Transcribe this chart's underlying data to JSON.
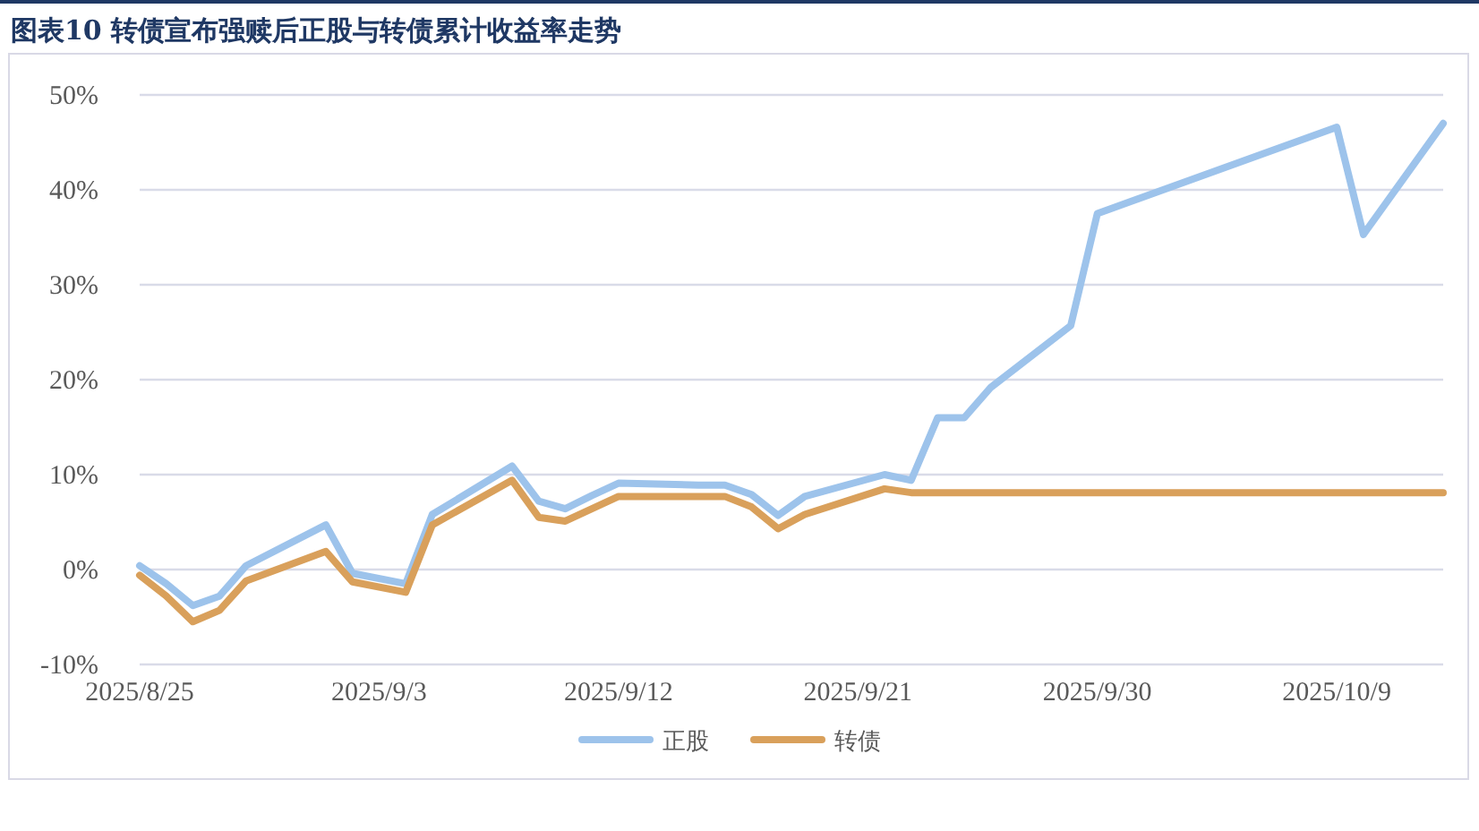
{
  "chart_data": {
    "type": "line",
    "title": "图表10 转债宣布强赎后正股与转债累计收益率走势",
    "x": [
      "2025-08-25",
      "2025-08-26",
      "2025-08-27",
      "2025-08-28",
      "2025-08-29",
      "2025-09-01",
      "2025-09-02",
      "2025-09-04",
      "2025-09-05",
      "2025-09-08",
      "2025-09-09",
      "2025-09-10",
      "2025-09-11",
      "2025-09-12",
      "2025-09-15",
      "2025-09-16",
      "2025-09-17",
      "2025-09-18",
      "2025-09-19",
      "2025-09-22",
      "2025-09-23",
      "2025-09-24",
      "2025-09-25",
      "2025-09-26",
      "2025-09-29",
      "2025-09-30",
      "2025-10-09",
      "2025-10-10",
      "2025-10-13"
    ],
    "series": [
      {
        "name": "正股",
        "color": "#9dc3eb",
        "values": [
          0.4,
          -1.5,
          -3.8,
          -2.8,
          0.4,
          4.7,
          -0.4,
          -1.5,
          5.8,
          10.9,
          7.2,
          6.4,
          7.8,
          9.1,
          8.9,
          8.9,
          7.9,
          5.7,
          7.7,
          10.0,
          9.4,
          16.0,
          16.0,
          19.2,
          25.7,
          37.5,
          46.6,
          35.3,
          47.0
        ]
      },
      {
        "name": "转债",
        "color": "#d9a05b",
        "values": [
          -0.6,
          -2.8,
          -5.5,
          -4.3,
          -1.2,
          1.9,
          -1.3,
          -2.4,
          4.7,
          9.4,
          5.5,
          5.1,
          6.4,
          7.7,
          7.7,
          7.7,
          6.6,
          4.3,
          5.8,
          8.5,
          8.1,
          8.1,
          8.1,
          8.1,
          8.1,
          8.1,
          8.1,
          8.1,
          8.1
        ]
      }
    ],
    "xlim": [
      "2025-08-25",
      "2025-10-13"
    ],
    "xticks": [
      {
        "value": "2025-08-25",
        "label": "2025/8/25"
      },
      {
        "value": "2025-09-03",
        "label": "2025/9/3"
      },
      {
        "value": "2025-09-12",
        "label": "2025/9/12"
      },
      {
        "value": "2025-09-21",
        "label": "2025/9/21"
      },
      {
        "value": "2025-09-30",
        "label": "2025/9/30"
      },
      {
        "value": "2025-10-09",
        "label": "2025/10/9"
      }
    ],
    "ylim": [
      -10,
      50
    ],
    "yticks": [
      {
        "value": -10,
        "label": "-10%"
      },
      {
        "value": 0,
        "label": "0%"
      },
      {
        "value": 10,
        "label": "10%"
      },
      {
        "value": 20,
        "label": "20%"
      },
      {
        "value": 30,
        "label": "30%"
      },
      {
        "value": 40,
        "label": "40%"
      },
      {
        "value": 50,
        "label": "50%"
      }
    ],
    "grid": "y",
    "legend": "bottom"
  }
}
